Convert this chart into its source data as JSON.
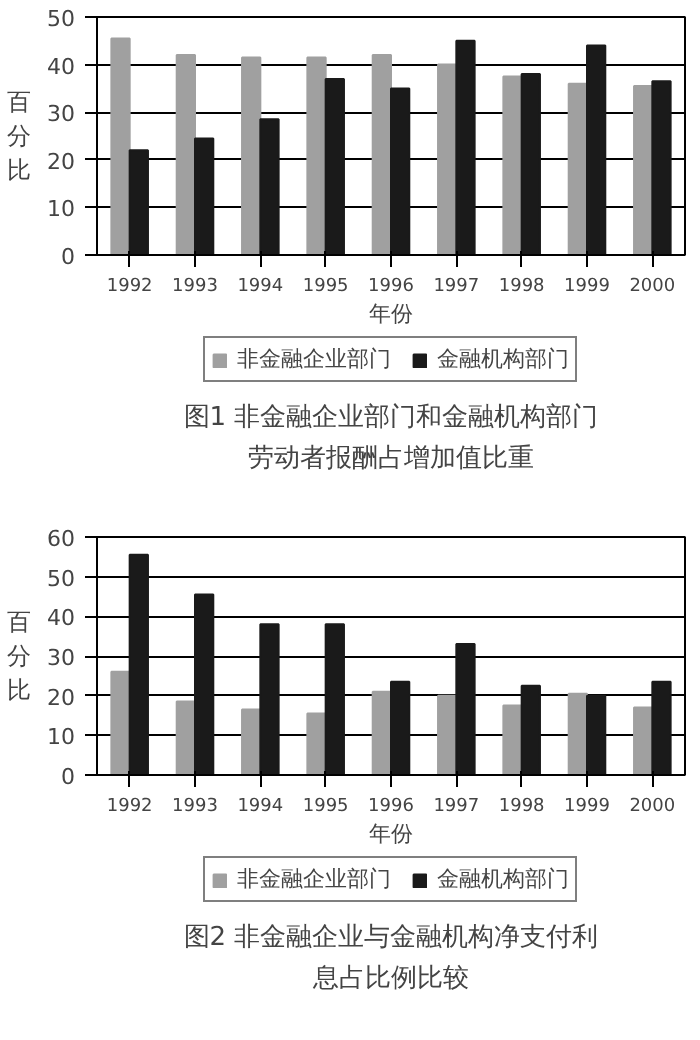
{
  "chart_data": [
    {
      "type": "bar",
      "title": "图1 非金融企业部门和金融机构部门劳动者报酬占增加值比重",
      "xlabel": "年份",
      "ylabel": "百分比",
      "categories": [
        "1992",
        "1993",
        "1994",
        "1995",
        "1996",
        "1997",
        "1998",
        "1999",
        "2000"
      ],
      "series": [
        {
          "name": "非金融企业部门",
          "color": "#a0a0a0",
          "values": [
            45.5,
            42,
            41.5,
            41.5,
            42,
            40,
            37.5,
            36,
            35.5
          ]
        },
        {
          "name": "金融机构部门",
          "color": "#1a1a1a",
          "values": [
            22,
            24.5,
            28.5,
            37,
            35,
            45,
            38,
            44,
            36.5
          ]
        }
      ],
      "ylim": [
        0,
        50
      ],
      "yticks": [
        0,
        10,
        20,
        30,
        40,
        50
      ],
      "grid": "y",
      "legend": "bottom"
    },
    {
      "type": "bar",
      "title": "图2 非金融企业与金融机构净支付利息占比例比较",
      "xlabel": "年份",
      "ylabel": "百分比",
      "categories": [
        "1992",
        "1993",
        "1994",
        "1995",
        "1996",
        "1997",
        "1998",
        "1999",
        "2000"
      ],
      "series": [
        {
          "name": "非金融企业部门",
          "color": "#a0a0a0",
          "values": [
            26,
            18.5,
            16.5,
            15.5,
            21,
            20,
            17.5,
            20.5,
            17
          ]
        },
        {
          "name": "金融机构部门",
          "color": "#1a1a1a",
          "values": [
            55.5,
            45.5,
            38,
            38,
            23.5,
            33,
            22.5,
            20,
            23.5
          ]
        }
      ],
      "ylim": [
        0,
        60
      ],
      "yticks": [
        0,
        10,
        20,
        30,
        40,
        50,
        60
      ],
      "grid": "y",
      "legend": "bottom"
    }
  ]
}
